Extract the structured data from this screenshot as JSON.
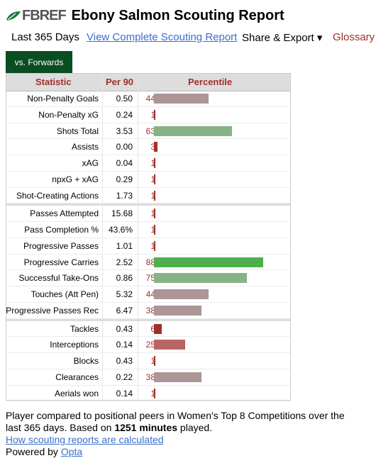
{
  "header": {
    "logo_text": "FBREF",
    "title": "Ebony Salmon Scouting Report"
  },
  "nav": {
    "period": "Last 365 Days",
    "view_complete": "View Complete Scouting Report",
    "share_export": "Share & Export ▾",
    "glossary": "Glossary"
  },
  "tab": {
    "label": "vs. Forwards"
  },
  "table": {
    "headers": {
      "statistic": "Statistic",
      "per90": "Per 90",
      "percentile": "Percentile"
    },
    "groups": [
      [
        {
          "stat": "Non-Penalty Goals",
          "per90": "0.50",
          "pct": "44",
          "pct_num": 44
        },
        {
          "stat": "Non-Penalty xG",
          "per90": "0.24",
          "pct": "1",
          "pct_num": 1
        },
        {
          "stat": "Shots Total",
          "per90": "3.53",
          "pct": "63",
          "pct_num": 63
        },
        {
          "stat": "Assists",
          "per90": "0.00",
          "pct": "3",
          "pct_num": 3
        },
        {
          "stat": "xAG",
          "per90": "0.04",
          "pct": "1",
          "pct_num": 1
        },
        {
          "stat": "npxG + xAG",
          "per90": "0.29",
          "pct": "1",
          "pct_num": 1
        },
        {
          "stat": "Shot-Creating Actions",
          "per90": "1.73",
          "pct": "1",
          "pct_num": 1
        }
      ],
      [
        {
          "stat": "Passes Attempted",
          "per90": "15.68",
          "pct": "1",
          "pct_num": 1
        },
        {
          "stat": "Pass Completion %",
          "per90": "43.6%",
          "pct": "1",
          "pct_num": 1
        },
        {
          "stat": "Progressive Passes",
          "per90": "1.01",
          "pct": "1",
          "pct_num": 1
        },
        {
          "stat": "Progressive Carries",
          "per90": "2.52",
          "pct": "88",
          "pct_num": 88
        },
        {
          "stat": "Successful Take-Ons",
          "per90": "0.86",
          "pct": "75",
          "pct_num": 75
        },
        {
          "stat": "Touches (Att Pen)",
          "per90": "5.32",
          "pct": "44",
          "pct_num": 44
        },
        {
          "stat": "Progressive Passes Rec",
          "per90": "6.47",
          "pct": "38",
          "pct_num": 38
        }
      ],
      [
        {
          "stat": "Tackles",
          "per90": "0.43",
          "pct": "6",
          "pct_num": 6
        },
        {
          "stat": "Interceptions",
          "per90": "0.14",
          "pct": "25",
          "pct_num": 25
        },
        {
          "stat": "Blocks",
          "per90": "0.43",
          "pct": "1",
          "pct_num": 1
        },
        {
          "stat": "Clearances",
          "per90": "0.22",
          "pct": "38",
          "pct_num": 38
        },
        {
          "stat": "Aerials won",
          "per90": "0.14",
          "pct": "1",
          "pct_num": 1
        }
      ]
    ]
  },
  "footer": {
    "line1": "Player compared to positional peers in Women's Top 8 Competitions over the",
    "line2a": "last 365 days. Based on ",
    "minutes": "1251 minutes",
    "line2b": " played.",
    "link": "How scouting reports are calculated",
    "powered_prefix": "Powered by ",
    "powered_link": "Opta"
  },
  "colors": {
    "bar_high": "#4db04d",
    "bar_good": "#86b385",
    "bar_mid": "#ab9595",
    "bar_low": "#b96464",
    "bar_min": "#a0302c"
  }
}
